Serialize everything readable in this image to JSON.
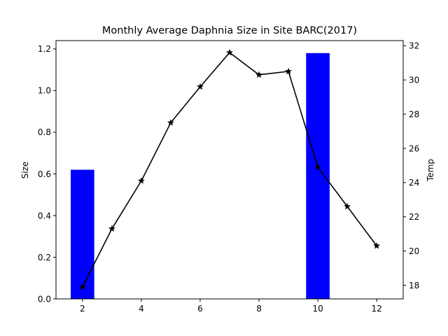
{
  "chart_data": {
    "type": "bar+line",
    "title": "Monthly Average Daphnia Size in Site BARC(2017)",
    "xlabel": "",
    "ylabel_left": "Size",
    "ylabel_right": "Temp",
    "xlim": [
      1.1,
      12.9
    ],
    "xticks": [
      2,
      4,
      6,
      8,
      10,
      12
    ],
    "ylim_left": [
      0,
      1.24
    ],
    "yticks_left": [
      "0.0",
      "0.2",
      "0.4",
      "0.6",
      "0.8",
      "1.0",
      "1.2"
    ],
    "ylim_right": [
      17.2,
      32.3
    ],
    "yticks_right": [
      "18",
      "20",
      "22",
      "24",
      "26",
      "28",
      "30",
      "32"
    ],
    "grid": false,
    "bar_series": {
      "name": "Size",
      "color": "#0000ff",
      "bar_width": 0.8,
      "x": [
        2,
        10
      ],
      "values": [
        0.62,
        1.18
      ]
    },
    "line_series": {
      "name": "Temp",
      "color": "#000000",
      "marker": "star",
      "x": [
        2,
        3,
        4,
        5,
        6,
        7,
        8,
        9,
        10,
        11,
        12
      ],
      "values": [
        17.9,
        21.3,
        24.1,
        27.5,
        29.6,
        31.6,
        30.3,
        30.5,
        24.9,
        22.6,
        20.3
      ]
    }
  }
}
